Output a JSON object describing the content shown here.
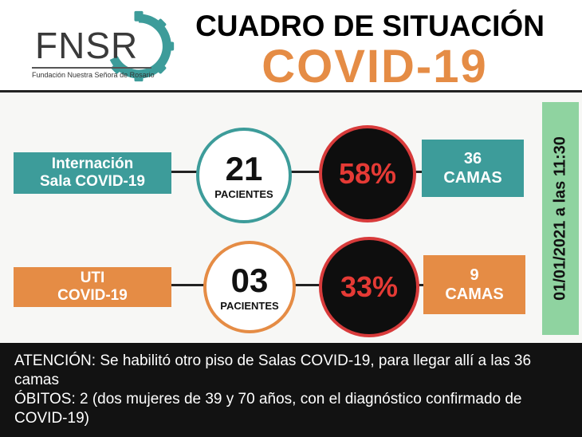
{
  "header": {
    "logo_text": "FNSR",
    "logo_subtitle": "Fundación Nuestra Señora de Rosario",
    "title": "CUADRO DE SITUACIÓN",
    "subtitle": "COVID-19"
  },
  "rows": [
    {
      "label_line1": "Internación",
      "label_line2": "Sala COVID-19",
      "patients": "21",
      "patients_label": "PACIENTES",
      "occupancy": "58%",
      "beds_number": "36",
      "beds_label": "CAMAS",
      "accent": "#3d9c9a"
    },
    {
      "label_line1": "UTI",
      "label_line2": "COVID-19",
      "patients": "03",
      "patients_label": "PACIENTES",
      "occupancy": "33%",
      "beds_number": "9",
      "beds_label": "CAMAS",
      "accent": "#e58c45"
    }
  ],
  "date": "01/01/2021 a las 11:30",
  "notice": {
    "line1": "ATENCIÓN: Se habilitó otro piso de Salas COVID-19, para llegar allí a las 36 camas",
    "line2": "ÓBITOS: 2 (dos mujeres de 39 y 70 años, con el diagnóstico confirmado de COVID-19)"
  },
  "colors": {
    "teal": "#3d9c9a",
    "orange": "#e58c45",
    "red": "#e53a35",
    "green": "#8fd3a0"
  }
}
